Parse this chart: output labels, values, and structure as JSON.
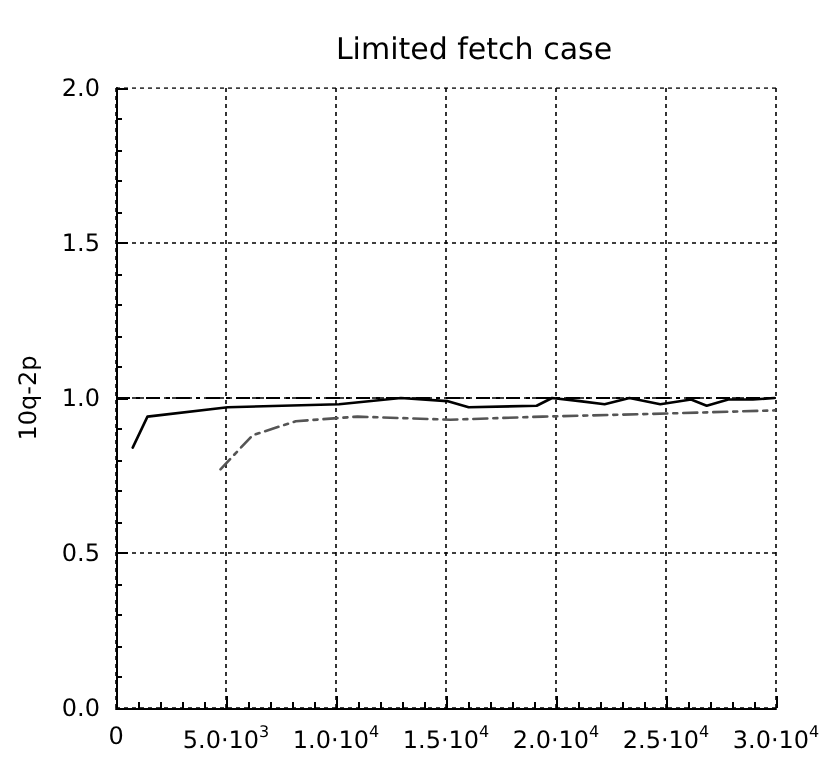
{
  "chart_data": {
    "type": "line",
    "title": "Limited fetch case",
    "ylabel": "10q-2p",
    "series": [
      {
        "color": "#000000",
        "line_style": "solid",
        "x": [
          760,
          1430,
          5080,
          10140,
          12950,
          15050,
          16030,
          19120,
          19820,
          21080,
          22210,
          23340,
          24740,
          26140,
          26850,
          27830,
          28950,
          29930
        ],
        "values": [
          0.84,
          0.94,
          0.97,
          0.98,
          1.0,
          0.99,
          0.97,
          0.975,
          1.0,
          0.99,
          0.98,
          1.0,
          0.98,
          0.995,
          0.975,
          0.995,
          0.995,
          1.0
        ]
      },
      {
        "color": "#555555",
        "line_style": "dashed",
        "x": [
          4750,
          6210,
          8170,
          10980,
          15190,
          19400,
          25020,
          29930
        ],
        "values": [
          0.77,
          0.88,
          0.925,
          0.94,
          0.93,
          0.94,
          0.95,
          0.96
        ]
      }
    ],
    "ref_lines": [
      {
        "axis": "y",
        "value": 1.0,
        "color": "#000000",
        "line_style": "dashed"
      }
    ],
    "xlim": [
      0,
      30000
    ],
    "xticks": [
      0,
      {
        "value": 5000,
        "label": "5.0·10$^{3}$"
      },
      {
        "value": 10000,
        "label": "1.0·10$^{4}$"
      },
      {
        "value": 15000,
        "label": "1.5·10$^{4}$"
      },
      {
        "value": 20000,
        "label": "2.0·10$^{4}$"
      },
      {
        "value": 25000,
        "label": "2.5·10$^{4}$"
      },
      {
        "value": 30000,
        "label": "3.0·10$^{4}$"
      }
    ],
    "ylim": [
      0,
      2.0
    ],
    "yticks": [
      {
        "value": 0,
        "label": "0.0"
      },
      {
        "value": 0.5,
        "label": "0.5"
      },
      {
        "value": 1.0,
        "label": "1.0"
      },
      {
        "value": 1.5,
        "label": "1.5"
      },
      {
        "value": 2.0,
        "label": "2.0"
      }
    ],
    "grid": true,
    "marker": "none"
  }
}
